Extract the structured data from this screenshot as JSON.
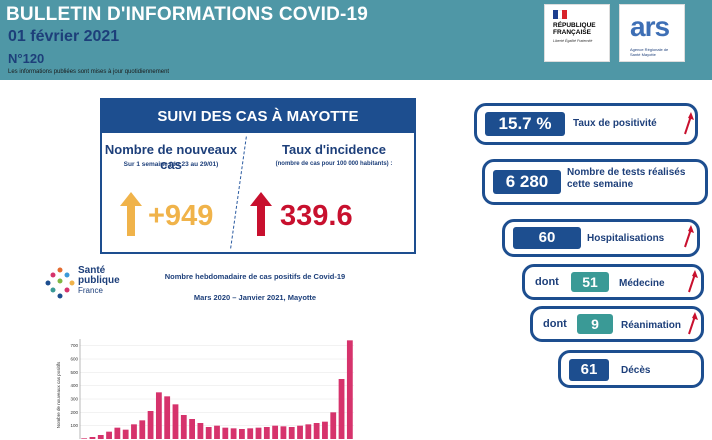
{
  "header": {
    "title": "BULLETIN D'INFORMATIONS COVID-19",
    "date": "01 février 2021",
    "number": "N°120",
    "note": "Les informations publiées sont mises à jour quotidiennement",
    "logo_rf_line1": "RÉPUBLIQUE",
    "logo_rf_line2": "FRANÇAISE",
    "logo_rf_motto": "Liberté Égalité Fraternité",
    "logo_ars": "ars",
    "logo_ars_sub": "Agence Régionale de Santé Mayotte"
  },
  "suivi": {
    "title": "SUIVI DES CAS À MAYOTTE",
    "new_cases_label": "Nombre de nouveaux cas",
    "new_cases_sub": "Sur 1 semaine (du 23 au 29/01)",
    "new_cases_value": "+949",
    "incidence_label": "Taux d'incidence",
    "incidence_sub": "(nombre de cas pour 100 000 habitants) :",
    "incidence_value": "339.6",
    "colors": {
      "new_cases": "#f0b34a",
      "incidence": "#c8102e",
      "frame": "#1d4e8f"
    }
  },
  "spf_logo": {
    "line1": "Santé",
    "line2": "publique",
    "line3": "France"
  },
  "chart_data": {
    "type": "bar",
    "title": "Nombre hebdomadaire de cas positifs de Covid-19",
    "subtitle": "Mars 2020 – Janvier 2021, Mayotte",
    "ylabel": "Nombre de nouveaux cas positifs",
    "yticks": [
      "700",
      "600",
      "500",
      "400",
      "300",
      "200",
      "100"
    ],
    "ylim": [
      0,
      750
    ],
    "color": "#d6336c",
    "values": [
      5,
      15,
      30,
      55,
      85,
      70,
      110,
      140,
      210,
      350,
      320,
      260,
      180,
      150,
      120,
      90,
      100,
      85,
      80,
      75,
      80,
      85,
      90,
      100,
      95,
      90,
      100,
      110,
      120,
      130,
      200,
      450,
      740
    ]
  },
  "indicators": [
    {
      "value": "15.7 %",
      "label": "Taux de positivité",
      "trend": "up"
    },
    {
      "value": "6 280",
      "label": "Nombre de tests réalisés cette semaine",
      "trend": "none"
    },
    {
      "value": "60",
      "label": "Hospitalisations",
      "trend": "up"
    },
    {
      "prefix": "dont",
      "value": "51",
      "label": "Médecine",
      "trend": "up"
    },
    {
      "prefix": "dont",
      "value": "9",
      "label": "Réanimation",
      "trend": "up"
    },
    {
      "value": "61",
      "label": "Décès",
      "trend": "none"
    }
  ]
}
